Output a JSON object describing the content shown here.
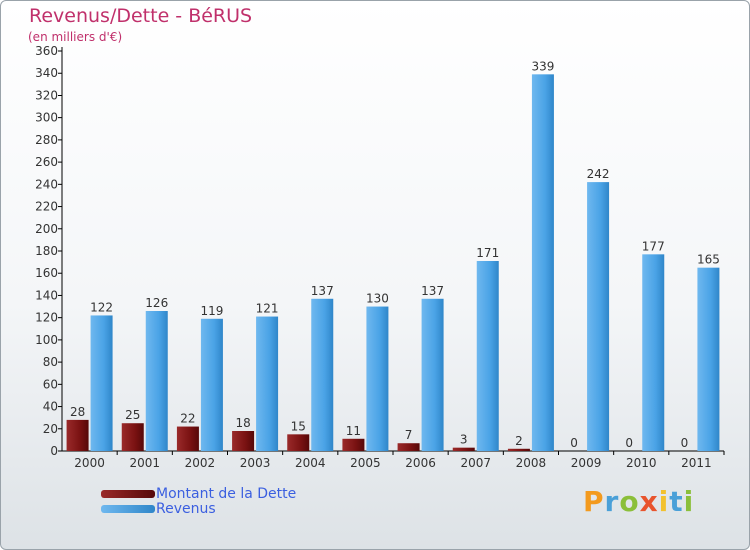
{
  "chart_data": {
    "type": "bar",
    "title": "Revenus/Dette - BéRUS",
    "subtitle": "(en milliers d'€)",
    "categories": [
      "2000",
      "2001",
      "2002",
      "2003",
      "2004",
      "2005",
      "2006",
      "2007",
      "2008",
      "2009",
      "2010",
      "2011"
    ],
    "series": [
      {
        "name": "Montant de la Dette",
        "values": [
          28,
          25,
          22,
          18,
          15,
          11,
          7,
          3,
          2,
          0,
          0,
          0
        ],
        "color": "#7a1212"
      },
      {
        "name": "Revenus",
        "values": [
          122,
          126,
          119,
          121,
          137,
          130,
          137,
          171,
          339,
          242,
          177,
          165
        ],
        "color": "#4aa3e6"
      }
    ],
    "ylim": [
      0,
      360
    ],
    "ytick_step": 20,
    "grid": false,
    "legend_position": "bottom-left"
  },
  "logo": {
    "letters": [
      "P",
      "r",
      "o",
      "x",
      "i",
      "t",
      "i"
    ]
  },
  "colors": {
    "title": "#c0306b",
    "legend_text": "#3b5fe0",
    "axis": "#000000"
  }
}
